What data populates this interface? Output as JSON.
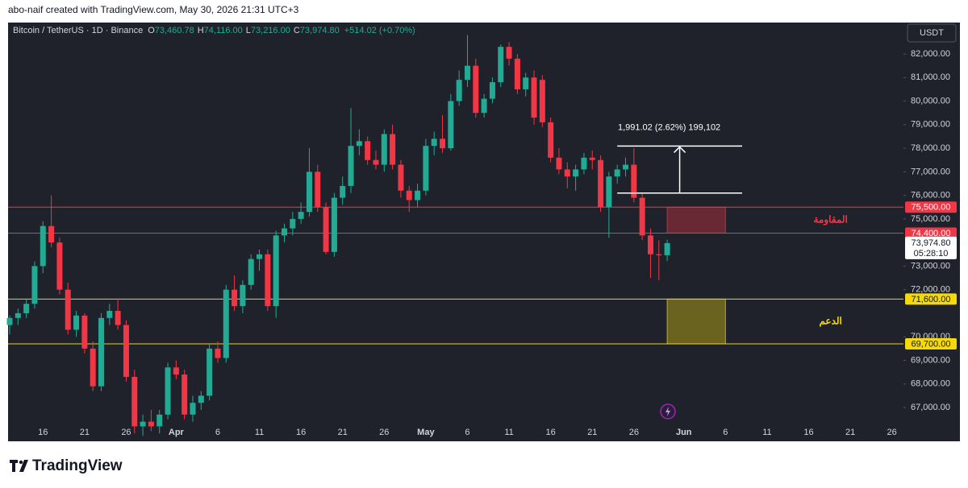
{
  "chart_data": {
    "type": "candlestick",
    "header": "abo-naif created with TradingView.com, May 30, 2026 21:31 UTC+3",
    "brand": "TradingView",
    "currency": "USDT",
    "legend": {
      "symbol": "Bitcoin / TetherUS · 1D · Binance",
      "fields": [
        {
          "key": "O",
          "value": "73,460.78"
        },
        {
          "key": "H",
          "value": "74,116.00"
        },
        {
          "key": "L",
          "value": "73,216.00"
        },
        {
          "key": "C",
          "value": "73,974.80"
        }
      ],
      "change": "+514.02 (+0.70%)"
    },
    "up_color": "#22ab94",
    "down_color": "#f23645",
    "x": [
      "2026-03-12",
      "2026-03-13",
      "2026-03-14",
      "2026-03-15",
      "2026-03-16",
      "2026-03-17",
      "2026-03-18",
      "2026-03-19",
      "2026-03-20",
      "2026-03-21",
      "2026-03-22",
      "2026-03-23",
      "2026-03-24",
      "2026-03-25",
      "2026-03-26",
      "2026-03-27",
      "2026-03-28",
      "2026-03-29",
      "2026-03-30",
      "2026-03-31",
      "2026-04-01",
      "2026-04-02",
      "2026-04-03",
      "2026-04-04",
      "2026-04-05",
      "2026-04-06",
      "2026-04-07",
      "2026-04-08",
      "2026-04-09",
      "2026-04-10",
      "2026-04-11",
      "2026-04-12",
      "2026-04-13",
      "2026-04-14",
      "2026-04-15",
      "2026-04-16",
      "2026-04-17",
      "2026-04-18",
      "2026-04-19",
      "2026-04-20",
      "2026-04-21",
      "2026-04-22",
      "2026-04-23",
      "2026-04-24",
      "2026-04-25",
      "2026-04-26",
      "2026-04-27",
      "2026-04-28",
      "2026-04-29",
      "2026-04-30",
      "2026-05-01",
      "2026-05-02",
      "2026-05-03",
      "2026-05-04",
      "2026-05-05",
      "2026-05-06",
      "2026-05-07",
      "2026-05-08",
      "2026-05-09",
      "2026-05-10",
      "2026-05-11",
      "2026-05-12",
      "2026-05-13",
      "2026-05-14",
      "2026-05-15",
      "2026-05-16",
      "2026-05-17",
      "2026-05-18",
      "2026-05-19",
      "2026-05-20",
      "2026-05-21",
      "2026-05-22",
      "2026-05-23",
      "2026-05-24",
      "2026-05-25",
      "2026-05-26",
      "2026-05-27",
      "2026-05-28",
      "2026-05-29",
      "2026-05-30"
    ],
    "open": [
      70500,
      70800,
      71000,
      71400,
      73000,
      74700,
      74000,
      72000,
      70300,
      70900,
      69500,
      67900,
      70800,
      71100,
      70500,
      68300,
      66200,
      66400,
      66200,
      66700,
      68700,
      68400,
      66700,
      67200,
      67500,
      69500,
      69100,
      72000,
      71300,
      72200,
      73300,
      73500,
      71300,
      74300,
      74600,
      75000,
      75300,
      77000,
      75500,
      73600,
      75900,
      76400,
      78100,
      78300,
      77500,
      77300,
      78600,
      77300,
      76200,
      75800,
      76200,
      78100,
      78400,
      78000,
      80000,
      80900,
      81500,
      79500,
      80100,
      80800,
      82300,
      81800,
      80500,
      81000,
      80900,
      79100,
      77600,
      77100,
      76800,
      77100,
      77600,
      77500,
      75500,
      76800,
      77100,
      77300,
      75900,
      74300,
      73500,
      73460.78
    ],
    "high": [
      70900,
      71200,
      71600,
      73200,
      74900,
      76000,
      74200,
      72300,
      71100,
      71000,
      69800,
      71000,
      71400,
      71600,
      70700,
      68600,
      66700,
      66900,
      66900,
      68900,
      69000,
      68600,
      67500,
      67700,
      69700,
      69800,
      72200,
      72600,
      72400,
      73500,
      73700,
      73700,
      74500,
      74800,
      75300,
      75700,
      78000,
      77300,
      75700,
      76100,
      76800,
      79700,
      78800,
      78500,
      77900,
      78800,
      79000,
      77500,
      76400,
      76500,
      78400,
      78700,
      79400,
      80300,
      81300,
      82800,
      81800,
      80300,
      81000,
      82400,
      82500,
      82000,
      81200,
      81300,
      81100,
      79300,
      78000,
      77400,
      77300,
      77800,
      77900,
      77700,
      77000,
      77300,
      77600,
      78000,
      76100,
      74600,
      74100,
      74116
    ],
    "low": [
      70100,
      70500,
      70800,
      71200,
      72700,
      73800,
      71800,
      70100,
      70000,
      69300,
      67700,
      67700,
      70500,
      70300,
      68100,
      65900,
      65800,
      66000,
      65900,
      66500,
      68200,
      66500,
      66400,
      66900,
      67300,
      68900,
      68900,
      71100,
      71000,
      72000,
      72800,
      71100,
      70800,
      74000,
      74300,
      74800,
      75100,
      75300,
      73500,
      73400,
      75600,
      76100,
      77700,
      77300,
      77100,
      77000,
      77100,
      75900,
      75300,
      75500,
      76000,
      77700,
      77800,
      77900,
      79800,
      80600,
      79300,
      79300,
      79900,
      80600,
      81500,
      80300,
      80200,
      79000,
      78900,
      77400,
      76900,
      76300,
      76200,
      76900,
      77100,
      75300,
      74200,
      76500,
      76800,
      75700,
      74100,
      72500,
      72400,
      73216
    ],
    "close": [
      70800,
      71000,
      71400,
      73000,
      74700,
      74000,
      72000,
      70300,
      70900,
      69500,
      67900,
      70800,
      71100,
      70500,
      68300,
      66200,
      66400,
      66200,
      66700,
      68700,
      68400,
      66700,
      67200,
      67500,
      69500,
      69100,
      72000,
      71300,
      72200,
      73300,
      73500,
      71300,
      74300,
      74600,
      75000,
      75300,
      77000,
      75500,
      73600,
      75900,
      76400,
      78100,
      78300,
      77500,
      77300,
      78600,
      77300,
      76200,
      75800,
      76200,
      78100,
      78400,
      78000,
      80000,
      80900,
      81500,
      79500,
      80100,
      80800,
      82300,
      81800,
      80500,
      81000,
      79300,
      79100,
      77600,
      77100,
      76800,
      77100,
      77600,
      77500,
      75500,
      76800,
      77100,
      77300,
      75900,
      74300,
      73500,
      73460.78,
      73974.8
    ],
    "xlim": [
      "2026-03-12",
      "2026-06-27"
    ],
    "xticks": [
      {
        "value": "2026-03-16",
        "label": "16"
      },
      {
        "value": "2026-03-21",
        "label": "21"
      },
      {
        "value": "2026-03-26",
        "label": "26"
      },
      {
        "value": "2026-04-01",
        "label": "Apr"
      },
      {
        "value": "2026-04-06",
        "label": "6"
      },
      {
        "value": "2026-04-11",
        "label": "11"
      },
      {
        "value": "2026-04-16",
        "label": "16"
      },
      {
        "value": "2026-04-21",
        "label": "21"
      },
      {
        "value": "2026-04-26",
        "label": "26"
      },
      {
        "value": "2026-05-01",
        "label": "May"
      },
      {
        "value": "2026-05-06",
        "label": "6"
      },
      {
        "value": "2026-05-11",
        "label": "11"
      },
      {
        "value": "2026-05-16",
        "label": "16"
      },
      {
        "value": "2026-05-21",
        "label": "21"
      },
      {
        "value": "2026-05-26",
        "label": "26"
      },
      {
        "value": "2026-06-01",
        "label": "Jun"
      },
      {
        "value": "2026-06-06",
        "label": "6"
      },
      {
        "value": "2026-06-11",
        "label": "11"
      },
      {
        "value": "2026-06-16",
        "label": "16"
      },
      {
        "value": "2026-06-21",
        "label": "21"
      },
      {
        "value": "2026-06-26",
        "label": "26"
      }
    ],
    "ylim": [
      65567,
      83332
    ],
    "yticks": [
      {
        "value": 82000,
        "label": "82,000.00"
      },
      {
        "value": 81000,
        "label": "81,000.00"
      },
      {
        "value": 80000,
        "label": "80,000.00"
      },
      {
        "value": 79000,
        "label": "79,000.00"
      },
      {
        "value": 78000,
        "label": "78,000.00"
      },
      {
        "value": 77000,
        "label": "77,000.00"
      },
      {
        "value": 76000,
        "label": "76,000.00"
      },
      {
        "value": 75000,
        "label": "75,000.00"
      },
      {
        "value": 73000,
        "label": "73,000.00"
      },
      {
        "value": 72000,
        "label": "72,000.00"
      },
      {
        "value": 70000,
        "label": "70,000.00"
      },
      {
        "value": 69000,
        "label": "69,000.00"
      },
      {
        "value": 68000,
        "label": "68,000.00"
      },
      {
        "value": 67000,
        "label": "67,000.00"
      }
    ],
    "grid": false,
    "zones": [
      {
        "name": "المقاومة",
        "color": "#f23645",
        "line_color": "#f23645",
        "high": {
          "value": 75500,
          "label": "75,500.00"
        },
        "low": {
          "value": 74400,
          "label": "74,400.00"
        },
        "from": "2026-05-30",
        "to": "2026-06-06"
      },
      {
        "name": "الدعم",
        "color": "#f5d90a",
        "line_color": "#e8d71e",
        "high": {
          "value": 71600,
          "label": "71,600.00"
        },
        "low": {
          "value": 69700,
          "label": "69,700.00"
        },
        "from": "2026-05-30",
        "to": "2026-06-06"
      }
    ],
    "last": {
      "value": 73974.8,
      "label": "73,974.80",
      "countdown": "05:28:10"
    },
    "measure": {
      "low": 76100,
      "high": 78091.02,
      "label": "1,991.02 (2.62%) 199,102",
      "from": "2026-05-24",
      "to": "2026-06-08"
    }
  }
}
